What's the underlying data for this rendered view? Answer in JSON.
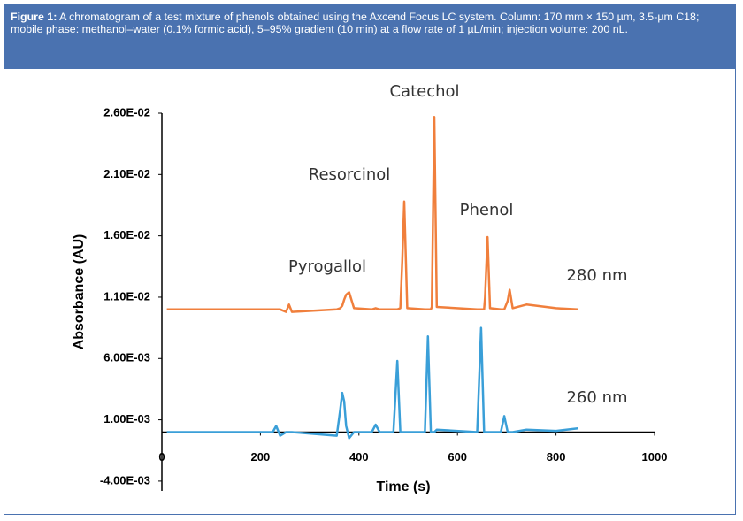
{
  "caption": {
    "label": "Figure 1:",
    "text": "A chromatogram of a test mixture of phenols obtained using the Axcend Focus LC system. Column: 170 mm × 150 µm, 3.5-µm C18; mobile phase: methanol–water (0.1% formic acid), 5–95% gradient (10 min) at a flow rate of 1 µL/min; injection volume: 200 nL."
  },
  "chart_data": {
    "type": "line",
    "x_label": "Time (s)",
    "y_label": "Absorbance (AU)",
    "x": [
      10,
      100,
      225,
      232,
      240,
      252,
      258,
      264,
      355,
      362,
      366,
      370,
      374,
      380,
      390,
      426,
      434,
      442,
      470,
      478,
      484,
      488,
      492,
      498,
      534,
      540,
      546,
      548,
      553,
      558,
      640,
      648,
      654,
      656,
      661,
      666,
      688,
      695,
      702,
      706,
      712,
      740,
      800,
      844
    ],
    "series": [
      {
        "name": "280 nm",
        "color": "#f07f3c",
        "values": [
          0.01,
          0.01,
          0.01,
          0.01,
          0.01,
          0.0098,
          0.0104,
          0.0098,
          0.01,
          0.0101,
          0.0103,
          0.0108,
          0.0112,
          0.0114,
          0.0101,
          0.01,
          0.0101,
          0.01,
          0.01,
          0.01,
          0.0101,
          0.014,
          0.0188,
          0.0101,
          0.01,
          0.01,
          0.01,
          0.0102,
          0.0257,
          0.0102,
          0.01,
          0.01,
          0.01,
          0.011,
          0.0159,
          0.0101,
          0.01,
          0.01,
          0.0107,
          0.0116,
          0.0101,
          0.0104,
          0.0101,
          0.01
        ]
      },
      {
        "name": "260 nm",
        "color": "#3a9fd8",
        "values": [
          0,
          0,
          0,
          0.0005,
          -0.0003,
          0,
          0,
          0,
          -0.0003,
          0.0018,
          0.0032,
          0.0025,
          0.0005,
          -0.0005,
          0,
          0,
          0.0006,
          0,
          0,
          0.0058,
          0,
          0,
          0,
          0,
          0,
          0.0078,
          0,
          0,
          0,
          0.0002,
          0,
          0.0085,
          0,
          0,
          0,
          0,
          0,
          0.0013,
          0,
          0,
          0,
          0.0002,
          0.0001,
          0.0003
        ]
      }
    ],
    "annotations": [
      "Catechol",
      "Resorcinol",
      "Phenol",
      "Pyrogallol"
    ],
    "legend_color": "#e8202a",
    "xlim": [
      0,
      1000
    ],
    "xticks": [
      0,
      200,
      400,
      600,
      800,
      1000
    ],
    "ylim": [
      -0.0048,
      0.026
    ],
    "yticks": [
      {
        "value": 0.026,
        "label": "2.60E-02"
      },
      {
        "value": 0.021,
        "label": "2.10E-02"
      },
      {
        "value": 0.016,
        "label": "1.60E-02"
      },
      {
        "value": 0.011,
        "label": "1.10E-02"
      },
      {
        "value": 0.006,
        "label": "6.00E-03"
      },
      {
        "value": 0.001,
        "label": "1.00E-03"
      },
      {
        "value": -0.004,
        "label": "-4.00E-03"
      }
    ]
  }
}
